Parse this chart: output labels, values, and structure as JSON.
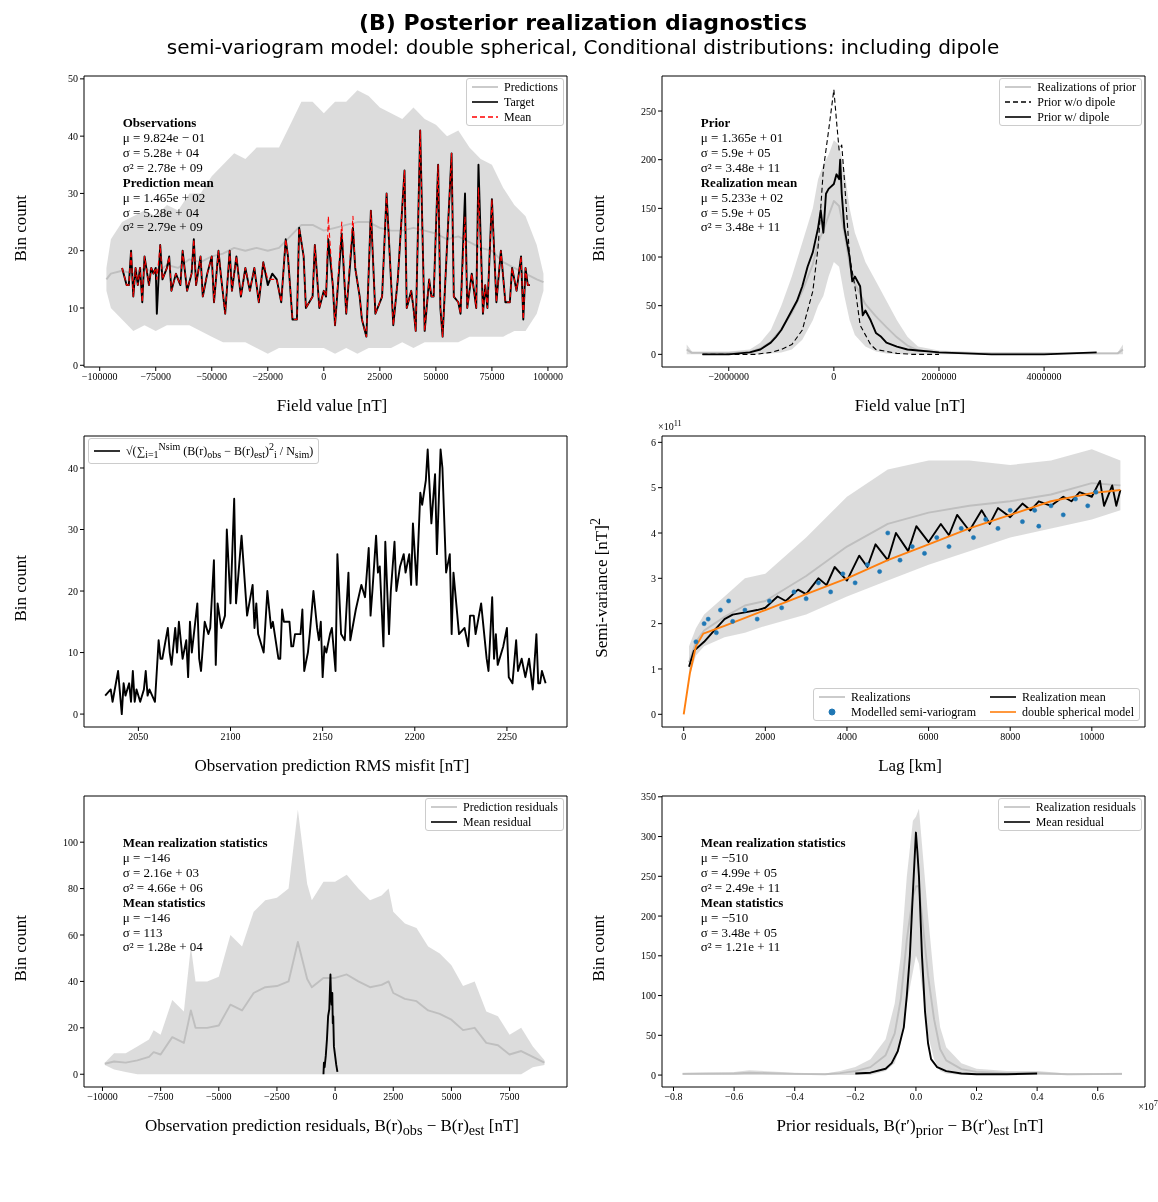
{
  "chart_data": [
    {
      "type": "line",
      "title": "(B) Posterior realization diagnostics",
      "subtitle": "semi-variogram model: double spherical, Conditional distributions: including dipole",
      "xlabel": "Field value [nT]",
      "ylabel": "Bin count",
      "xlim": [
        -107000,
        108500
      ],
      "xticks": [
        -100000,
        -75000,
        -50000,
        -25000,
        0,
        25000,
        50000,
        75000,
        100000
      ],
      "ylim": [
        -0.3,
        50.5
      ],
      "yticks": [
        0,
        10,
        20,
        30,
        40,
        50
      ],
      "legend": "top right",
      "annotations": [
        "Observations\nμ = 9.824e − 01\nσ = 5.28e + 04\nσ² = 2.78e + 09",
        "Prediction mean\nμ = 1.465e + 02\nσ = 5.28e + 04\nσ² = 2.79e + 09"
      ],
      "x": [
        -90000,
        -88000,
        -87000,
        -86000,
        -85000,
        -84000,
        -83000,
        -82000,
        -81000,
        -80000,
        -78000,
        -77000,
        -76000,
        -75000,
        -74500,
        -73000,
        -72000,
        -70000,
        -69000,
        -68000,
        -66000,
        -64000,
        -63000,
        -61000,
        -59000,
        -58000,
        -57000,
        -55000,
        -54000,
        -52000,
        -50000,
        -49000,
        -47000,
        -46000,
        -44000,
        -42000,
        -41000,
        -39000,
        -37000,
        -35000,
        -33000,
        -31000,
        -29000,
        -27000,
        -25000,
        -23000,
        -21000,
        -19000,
        -17000,
        -16000,
        -14000,
        -12000,
        -11000,
        -9000,
        -8000,
        -5000,
        -4000,
        -2000,
        0,
        1000,
        2000,
        4000,
        5000,
        8000,
        10000,
        13000,
        14000,
        16000,
        17000,
        19000,
        21000,
        23000,
        26000,
        28000,
        31000,
        33000,
        36000,
        37000,
        39000,
        40000,
        41000,
        43000,
        45000,
        47000,
        48000,
        49000,
        51000,
        52000,
        53000,
        54000,
        57000,
        58000,
        60000,
        61000,
        63000,
        64000,
        66000,
        68000,
        69000,
        71000,
        72000,
        73000,
        75000,
        77000,
        79000,
        81000,
        83000,
        84000,
        86000,
        88000,
        89000,
        90000,
        91000,
        92000
      ],
      "series": [
        {
          "name": "Predictions",
          "color": "#bfbfbf",
          "x": [
            -97000,
            -95000,
            -90000,
            -85000,
            -80000,
            -75000,
            -70000,
            -65000,
            -60000,
            -55000,
            -50000,
            -45000,
            -40000,
            -35000,
            -30000,
            -25000,
            -20000,
            -15000,
            -10000,
            -5000,
            0,
            5000,
            10000,
            15000,
            20000,
            25000,
            30000,
            35000,
            40000,
            45000,
            50000,
            55000,
            60000,
            65000,
            70000,
            75000,
            80000,
            85000,
            90000,
            95000,
            98000
          ],
          "values": [
            15,
            16,
            16.5,
            16,
            17,
            16,
            17.5,
            17,
            18.5,
            18,
            19,
            19.5,
            20.5,
            20,
            20.5,
            20,
            20.5,
            22.5,
            24.5,
            24.5,
            23.5,
            24,
            24.5,
            25,
            25,
            24,
            23.5,
            23.5,
            24,
            23.5,
            23,
            22,
            22.5,
            21.5,
            20.5,
            20,
            18,
            17,
            16,
            15,
            14.5
          ],
          "upper": [
            17,
            22,
            25,
            26,
            27,
            26,
            28,
            27,
            30,
            30,
            33,
            35,
            37,
            36,
            38,
            38,
            38,
            42,
            46,
            46,
            44,
            46,
            46,
            48,
            47,
            45,
            44,
            43,
            45,
            43,
            42,
            40,
            41,
            38,
            36,
            35,
            31,
            28,
            26,
            21,
            16
          ],
          "lower": [
            13,
            10,
            8,
            6,
            7,
            6,
            7,
            7,
            7,
            6,
            5,
            4,
            4,
            4,
            3,
            2,
            3,
            3,
            3,
            3,
            3,
            2,
            3,
            2,
            3,
            3,
            3,
            4,
            3,
            4,
            4,
            4,
            4,
            5,
            5,
            5,
            5,
            6,
            6,
            9,
            13
          ]
        },
        {
          "name": "Target",
          "color": "#000000",
          "values": [
            17,
            14,
            14,
            20,
            12,
            17,
            14,
            17,
            11,
            19,
            14,
            17,
            16,
            17,
            9,
            21,
            15,
            17,
            19,
            13,
            16,
            14,
            20,
            13,
            16,
            22,
            14,
            19,
            12,
            16,
            19,
            11,
            20,
            16,
            9,
            20,
            13,
            19,
            12,
            17,
            13,
            17,
            11,
            18,
            14,
            16,
            15,
            11,
            22,
            19,
            8,
            8,
            24,
            19,
            10,
            12,
            21,
            10,
            13,
            12,
            22,
            14,
            7,
            23,
            9,
            24,
            17,
            12,
            8,
            5,
            27,
            9,
            12,
            30,
            7,
            15,
            34,
            10,
            13,
            10,
            6,
            41,
            6,
            15,
            12,
            12,
            35,
            10,
            5,
            13,
            37,
            12,
            11,
            9,
            30,
            10,
            16,
            10,
            35,
            9,
            14,
            10,
            29,
            11,
            20,
            11,
            11,
            17,
            13,
            19,
            8,
            17,
            14,
            14
          ]
        },
        {
          "name": "Mean",
          "color": "#ff0000",
          "line_style": "dashed",
          "values": [
            17,
            14,
            14,
            20,
            12,
            17,
            14,
            17,
            11,
            19,
            14,
            17,
            16,
            17,
            15,
            21,
            15,
            17,
            19,
            13,
            16,
            14,
            20,
            13,
            16,
            22,
            14,
            19,
            12,
            16,
            19,
            11,
            20,
            16,
            9,
            20,
            13,
            19,
            12,
            17,
            13,
            17,
            11,
            18,
            15,
            15,
            15,
            11,
            22,
            19,
            8,
            8,
            24,
            19,
            10,
            12,
            21,
            10,
            13,
            12,
            26,
            14,
            7,
            25,
            9,
            26,
            17,
            12,
            8,
            5,
            27,
            9,
            12,
            30,
            7,
            15,
            34,
            10,
            13,
            10,
            6,
            41,
            6,
            15,
            12,
            12,
            35,
            10,
            5,
            13,
            37,
            12,
            11,
            9,
            26,
            10,
            16,
            10,
            31,
            9,
            14,
            10,
            29,
            11,
            20,
            11,
            11,
            17,
            13,
            19,
            8,
            17,
            14,
            14
          ]
        }
      ]
    },
    {
      "type": "line",
      "xlabel": "Field value [nT]",
      "ylabel": "Bin count",
      "xlim": [
        -3270000,
        5920000
      ],
      "xticks": [
        -2000000,
        0,
        2000000,
        4000000
      ],
      "ylim": [
        -13,
        286
      ],
      "yticks": [
        0,
        50,
        100,
        150,
        200,
        250
      ],
      "legend": "top right",
      "annotations": [
        "Prior\nμ = 1.365e + 01\nσ = 5.9e + 05\nσ² = 3.48e + 11",
        "Realization mean\nμ = 5.233e + 02\nσ = 5.9e + 05\nσ² = 3.48e + 11"
      ],
      "series": [
        {
          "name": "Realizations of prior",
          "color": "#bfbfbf",
          "x": [
            -2800000,
            -2700000,
            -2000000,
            -1600000,
            -1400000,
            -1200000,
            -1000000,
            -800000,
            -600000,
            -400000,
            -300000,
            -200000,
            -100000,
            0,
            100000,
            200000,
            300000,
            400000,
            600000,
            800000,
            1000000,
            1200000,
            1400000,
            1600000,
            2000000,
            3000000,
            4000000,
            5400000,
            5500000
          ],
          "values": [
            5,
            1.5,
            1.5,
            2.5,
            6,
            13,
            26,
            42.5,
            65,
            92.5,
            115,
            127.5,
            142.5,
            157.5,
            152.5,
            125,
            92.5,
            72.5,
            51.5,
            39,
            28,
            17.5,
            9,
            4,
            2,
            1,
            1,
            1,
            5
          ],
          "upper": [
            10,
            3,
            3,
            5,
            12,
            25,
            50,
            80,
            115,
            150,
            180,
            195,
            205,
            220,
            215,
            190,
            150,
            125,
            95,
            75,
            55,
            35,
            18,
            8,
            4,
            2,
            2,
            2,
            10
          ],
          "lower": [
            0,
            0,
            0,
            0,
            0,
            1,
            2,
            5,
            15,
            35,
            50,
            60,
            80,
            95,
            90,
            60,
            35,
            20,
            8,
            3,
            1,
            0,
            0,
            0,
            0,
            0,
            0,
            0,
            0
          ]
        },
        {
          "name": "Prior w/o dipole",
          "color": "#000000",
          "line_style": "dashed",
          "x": [
            -2500000,
            -1500000,
            -1200000,
            -1000000,
            -800000,
            -600000,
            -500000,
            -400000,
            -300000,
            -200000,
            -100000,
            0,
            50000,
            100000,
            150000,
            200000,
            300000,
            400000,
            500000,
            600000,
            700000,
            800000,
            1000000,
            1200000,
            1500000,
            2000000
          ],
          "values": [
            0,
            0,
            2,
            5,
            10,
            25,
            45,
            65,
            110,
            190,
            230,
            272,
            240,
            210,
            215,
            180,
            100,
            70,
            30,
            20,
            10,
            5,
            3,
            1,
            0,
            0
          ]
        },
        {
          "name": "Prior w/ dipole",
          "color": "#000000",
          "x": [
            -2500000,
            -2000000,
            -1600000,
            -1400000,
            -1200000,
            -1100000,
            -1000000,
            -900000,
            -800000,
            -700000,
            -600000,
            -500000,
            -400000,
            -300000,
            -250000,
            -200000,
            -150000,
            -100000,
            0,
            50000,
            100000,
            120000,
            150000,
            200000,
            300000,
            350000,
            400000,
            500000,
            550000,
            600000,
            700000,
            800000,
            900000,
            1000000,
            1200000,
            1400000,
            1600000,
            1800000,
            2000000,
            2500000,
            3000000,
            4000000,
            5000000
          ],
          "values": [
            0,
            0,
            2,
            5,
            12,
            18,
            25,
            35,
            45,
            55,
            70,
            90,
            105,
            130,
            148,
            125,
            165,
            170,
            175,
            185,
            180,
            200,
            165,
            130,
            100,
            75,
            80,
            70,
            40,
            45,
            35,
            22,
            18,
            12,
            8,
            5,
            4,
            3,
            2,
            1,
            0,
            0,
            2
          ]
        }
      ]
    },
    {
      "type": "line",
      "xlabel": "Observation prediction RMS misfit [nT]",
      "ylabel": "Bin count",
      "xlim": [
        2020.5,
        2282.6
      ],
      "xticks": [
        2050,
        2100,
        2150,
        2200,
        2250
      ],
      "ylim": [
        -2.1,
        45.2
      ],
      "yticks": [
        0,
        10,
        20,
        30,
        40
      ],
      "legend": "top left",
      "series": [
        {
          "name": "√(∑$_{i=1}$$^{Nsim}$ (B(r)$_{obs}$ − B(r)$_{est}$)$^{2}$$_{i}$ / N$_{sim}$)",
          "color": "#000000",
          "x": [
            2032,
            2035,
            2036,
            2039,
            2041,
            2042,
            2043,
            2045,
            2046,
            2047,
            2048,
            2049,
            2051,
            2053,
            2054,
            2055,
            2056,
            2059,
            2061,
            2062,
            2063,
            2066,
            2067,
            2068,
            2070,
            2071,
            2072,
            2074,
            2076,
            2077,
            2078,
            2079,
            2082,
            2083,
            2084,
            2086,
            2088,
            2089,
            2091,
            2092,
            2093,
            2095,
            2097,
            2098,
            2100,
            2102,
            2103,
            2106,
            2109,
            2112,
            2113,
            2114,
            2115,
            2118,
            2120,
            2122,
            2123,
            2126,
            2127,
            2128,
            2129,
            2132,
            2133,
            2134,
            2135,
            2138,
            2139,
            2140,
            2142,
            2143,
            2145,
            2147,
            2148,
            2149,
            2150,
            2151,
            2152,
            2154,
            2155,
            2157,
            2158,
            2160,
            2162,
            2164,
            2165,
            2168,
            2171,
            2173,
            2175,
            2176,
            2177,
            2179,
            2180,
            2181,
            2183,
            2184,
            2186,
            2187,
            2189,
            2190,
            2192,
            2194,
            2195,
            2197,
            2198,
            2199,
            2201,
            2203,
            2204,
            2206,
            2207,
            2209,
            2211,
            2212,
            2214,
            2215,
            2217,
            2219,
            2220,
            2221,
            2224,
            2227,
            2229,
            2230,
            2232,
            2233,
            2236,
            2239,
            2240,
            2242,
            2243,
            2244,
            2245,
            2248,
            2250,
            2251,
            2253,
            2255,
            2256,
            2258,
            2260,
            2262,
            2264,
            2266,
            2267,
            2268,
            2269,
            2271
          ],
          "values": [
            3,
            4,
            2,
            7,
            0,
            5,
            3,
            5,
            2,
            7,
            2,
            4,
            2,
            4,
            7,
            3,
            4,
            2,
            12,
            9,
            9,
            14,
            10,
            8,
            14,
            10,
            15,
            9,
            12,
            6,
            15,
            10,
            18,
            9,
            7,
            15,
            13,
            14,
            25,
            8,
            18,
            14,
            16,
            30,
            18,
            35,
            18,
            29,
            16,
            21,
            14,
            18,
            13,
            10,
            20,
            14,
            15,
            9,
            9,
            17,
            15,
            15,
            11,
            11,
            13,
            13,
            17,
            7,
            10,
            13,
            20,
            14,
            12,
            15,
            6,
            11,
            10,
            13,
            14,
            7,
            26,
            13,
            12,
            23,
            12,
            17,
            21,
            19,
            27,
            16,
            20,
            29,
            23,
            24,
            11,
            28,
            13,
            20,
            28,
            20,
            24,
            26,
            23,
            26,
            21,
            31,
            21,
            36,
            34,
            38,
            43,
            31,
            39,
            26,
            43,
            40,
            23,
            26,
            13,
            23,
            13,
            14,
            11,
            16,
            16,
            13,
            18,
            9,
            7,
            19,
            9,
            13,
            8,
            11,
            14,
            6,
            5,
            12,
            7,
            9,
            6,
            9,
            4,
            13,
            5,
            5,
            7,
            5
          ]
        }
      ]
    },
    {
      "type": "line",
      "xlabel": "Lag [km]",
      "ylabel": "Semi-variance [nT]$^{2}$",
      "xlim": [
        -532,
        11303
      ],
      "xticks": [
        0,
        2000,
        4000,
        6000,
        8000,
        10000
      ],
      "ylim": [
        -0.28,
        6.14
      ],
      "yticks": [
        0,
        1,
        2,
        3,
        4,
        5,
        6
      ],
      "legend": "bottom right",
      "annotations": [
        "×10$^{11}$"
      ],
      "series": [
        {
          "name": "Realizations",
          "color": "#bfbfbf",
          "x": [
            130,
            300,
            500,
            1000,
            1500,
            2000,
            3000,
            4000,
            5000,
            6000,
            7000,
            8000,
            9000,
            10000,
            10700
          ],
          "values": [
            1.15,
            1.6,
            1.85,
            2.15,
            2.4,
            2.5,
            3.05,
            3.7,
            4.2,
            4.45,
            4.6,
            4.7,
            4.85,
            5.1,
            5.05
          ],
          "upper": [
            1.5,
            1.9,
            2.2,
            2.6,
            3.0,
            3.1,
            3.9,
            4.8,
            5.4,
            5.6,
            5.6,
            5.5,
            5.6,
            5.85,
            5.6
          ],
          "lower": [
            0.8,
            1.3,
            1.5,
            1.7,
            1.8,
            1.95,
            2.2,
            2.6,
            2.95,
            3.3,
            3.6,
            3.9,
            4.1,
            4.3,
            4.5
          ]
        },
        {
          "name": "Modelled semi-variogram",
          "type": "scatter",
          "marker": "circle",
          "color": "#1f77b4",
          "x": [
            300,
            500,
            600,
            800,
            900,
            1100,
            1200,
            1500,
            1800,
            2100,
            2400,
            2700,
            3000,
            3300,
            3600,
            3900,
            4200,
            4500,
            4800,
            5000,
            5300,
            5600,
            5900,
            6200,
            6500,
            6800,
            7100,
            7400,
            7700,
            8000,
            8300,
            8600,
            8700,
            9000,
            9300,
            9600,
            9900,
            10100
          ],
          "values": [
            1.6,
            2.0,
            2.1,
            1.8,
            2.3,
            2.5,
            2.05,
            2.3,
            2.1,
            2.5,
            2.35,
            2.7,
            2.55,
            2.9,
            2.7,
            3.1,
            2.9,
            3.3,
            3.15,
            4.0,
            3.4,
            3.7,
            3.55,
            3.9,
            3.7,
            4.1,
            3.9,
            4.3,
            4.1,
            4.5,
            4.25,
            4.5,
            4.15,
            4.6,
            4.4,
            4.75,
            4.6,
            4.9
          ]
        },
        {
          "name": "Realization mean",
          "color": "#000000",
          "x": [
            130,
            250,
            500,
            750,
            1000,
            1200,
            1500,
            1800,
            2000,
            2300,
            2500,
            2800,
            3000,
            3300,
            3500,
            3700,
            4000,
            4300,
            4500,
            4700,
            5000,
            5200,
            5500,
            5700,
            6000,
            6300,
            6500,
            6700,
            7000,
            7300,
            7500,
            7700,
            8000,
            8300,
            8500,
            8700,
            9000,
            9300,
            9500,
            9700,
            10000,
            10200,
            10300,
            10500,
            10600,
            10700
          ],
          "values": [
            1.05,
            1.4,
            1.6,
            1.85,
            2.1,
            2.2,
            2.25,
            2.3,
            2.35,
            2.6,
            2.5,
            2.75,
            2.65,
            3.0,
            2.85,
            3.25,
            2.95,
            3.5,
            3.25,
            3.75,
            3.4,
            4.0,
            3.6,
            4.15,
            3.8,
            4.2,
            3.95,
            4.4,
            4.05,
            4.5,
            4.2,
            4.55,
            4.35,
            4.65,
            4.5,
            4.7,
            4.6,
            4.8,
            4.7,
            4.9,
            4.8,
            5.15,
            4.6,
            5.05,
            4.6,
            4.95
          ]
        },
        {
          "name": "double spherical model",
          "color": "#ff7f0e",
          "x": [
            0,
            150,
            300,
            480,
            1000,
            2000,
            3000,
            4000,
            5000,
            6000,
            7000,
            8000,
            9000,
            10000,
            10700
          ],
          "values": [
            0,
            0.9,
            1.5,
            1.78,
            1.95,
            2.3,
            2.65,
            3.0,
            3.4,
            3.75,
            4.1,
            4.4,
            4.7,
            4.88,
            4.95
          ]
        }
      ]
    },
    {
      "type": "line",
      "xlabel": "Observation prediction residuals, B(r)$_{obs}$ − B(r)$_{est}$ [nT]",
      "ylabel": "Bin count",
      "xlim": [
        -10794,
        9969
      ],
      "xticks": [
        -10000,
        -7500,
        -5000,
        -2500,
        0,
        2500,
        5000,
        7500
      ],
      "ylim": [
        -5.5,
        119.9
      ],
      "yticks": [
        0,
        20,
        40,
        60,
        80,
        100
      ],
      "legend": "top right",
      "annotations": [
        "Mean realization statistics\nμ = −146\nσ = 2.16e + 03\nσ² = 4.66e + 06",
        "Mean statistics\nμ = −146\nσ = 113\nσ² = 1.28e + 04"
      ],
      "series": [
        {
          "name": "Prediction residuals",
          "color": "#bfbfbf",
          "x": [
            -9900,
            -9500,
            -9000,
            -8500,
            -8000,
            -7800,
            -7500,
            -7000,
            -6500,
            -6200,
            -6000,
            -5500,
            -5000,
            -4500,
            -4000,
            -3500,
            -3000,
            -2500,
            -2000,
            -1600,
            -1200,
            -1000,
            -500,
            0,
            500,
            1000,
            1500,
            2000,
            2300,
            2500,
            3000,
            3500,
            4000,
            4500,
            5000,
            5500,
            6000,
            6500,
            7000,
            7500,
            8000,
            8500,
            9000
          ],
          "values": [
            4.5,
            5.5,
            5,
            6,
            7.5,
            9.5,
            8.5,
            16,
            13.5,
            27.5,
            20,
            20,
            21,
            30,
            27.5,
            35,
            37.5,
            38,
            40,
            57,
            41,
            37.5,
            41.5,
            41.5,
            43,
            40,
            37.5,
            38.5,
            40,
            35,
            32.5,
            31.5,
            27.5,
            26,
            23.5,
            19,
            20,
            13.5,
            12.5,
            8.5,
            10,
            7.5,
            5
          ],
          "upper": [
            5,
            9,
            9,
            12,
            15,
            19,
            17,
            32,
            27,
            55,
            40,
            40,
            42,
            60,
            55,
            70,
            75,
            76,
            80,
            114,
            82,
            75,
            83,
            83,
            86,
            80,
            75,
            77,
            80,
            70,
            65,
            63,
            55,
            52,
            47,
            38,
            40,
            27,
            25,
            17,
            20,
            12,
            6
          ],
          "lower": [
            4,
            2,
            1,
            0,
            0,
            0,
            0,
            0,
            0,
            0,
            0,
            0,
            0,
            0,
            0,
            0,
            0,
            0,
            0,
            0,
            0,
            0,
            0,
            0,
            0,
            0,
            0,
            0,
            0,
            0,
            0,
            0,
            0,
            0,
            0,
            0,
            0,
            0,
            0,
            0,
            0,
            3,
            4
          ]
        },
        {
          "name": "Mean residual",
          "color": "#000000",
          "x": [
            -500,
            -480,
            -450,
            -400,
            -350,
            -300,
            -250,
            -200,
            -180,
            -150,
            -120,
            -100,
            -80,
            -50,
            0,
            50,
            100
          ],
          "values": [
            0,
            5,
            3,
            8,
            15,
            25,
            28,
            43,
            35,
            30,
            35,
            22,
            25,
            12,
            8,
            4,
            1
          ]
        }
      ]
    },
    {
      "type": "line",
      "xlabel": "Prior residuals, B(r′)$_{prior}$ − B(r′)$_{est}$ [nT]",
      "ylabel": "Bin count",
      "xlim": [
        -0.838,
        0.756
      ],
      "xticks": [
        {
          "value": -0.8,
          "label": "−0.8"
        },
        {
          "value": -0.6,
          "label": "−0.6"
        },
        {
          "value": -0.4,
          "label": "−0.4"
        },
        {
          "value": -0.2,
          "label": "−0.2"
        },
        {
          "value": 0,
          "label": "0.0"
        },
        {
          "value": 0.2,
          "label": "0.2"
        },
        {
          "value": 0.4,
          "label": "0.4"
        },
        {
          "value": 0.6,
          "label": "0.6"
        }
      ],
      "ylim": [
        -15,
        351
      ],
      "yticks": [
        0,
        50,
        100,
        150,
        200,
        250,
        300,
        350
      ],
      "legend": "top right",
      "annotations": [
        "Mean realization statistics\nμ = −510\nσ = 4.99e + 05\nσ² = 2.49e + 11",
        "Mean statistics\nμ = −510\nσ = 3.48e + 05\nσ² = 1.21e + 11",
        "×10$^{7}$"
      ],
      "series": [
        {
          "name": "Realization residuals",
          "color": "#bfbfbf",
          "x": [
            -0.77,
            -0.6,
            -0.55,
            -0.4,
            -0.3,
            -0.25,
            -0.2,
            -0.15,
            -0.1,
            -0.07,
            -0.05,
            -0.03,
            -0.01,
            0,
            0.01,
            0.02,
            0.04,
            0.06,
            0.08,
            0.1,
            0.15,
            0.2,
            0.3,
            0.4,
            0.5,
            0.68
          ],
          "values": [
            1.5,
            2,
            3,
            1.5,
            1,
            2.5,
            5,
            10,
            25,
            52.5,
            95,
            170,
            225,
            237.5,
            237.5,
            200,
            125,
            70,
            32.5,
            18.5,
            7.5,
            4,
            2.5,
            2.5,
            1,
            1.5
          ],
          "upper": [
            3,
            4,
            6,
            3,
            2,
            5,
            10,
            20,
            45,
            90,
            150,
            250,
            320,
            325,
            335,
            290,
            200,
            120,
            60,
            35,
            15,
            8,
            5,
            5,
            2,
            3
          ],
          "lower": [
            0,
            0,
            0,
            0,
            0,
            0,
            0,
            0,
            5,
            15,
            40,
            90,
            130,
            150,
            140,
            110,
            50,
            20,
            5,
            2,
            0,
            0,
            0,
            0,
            0,
            0
          ]
        },
        {
          "name": "Mean residual",
          "color": "#000000",
          "x": [
            -0.2,
            -0.15,
            -0.1,
            -0.08,
            -0.06,
            -0.04,
            -0.03,
            -0.02,
            -0.01,
            0,
            0.005,
            0.01,
            0.015,
            0.02,
            0.03,
            0.04,
            0.05,
            0.07,
            0.1,
            0.15,
            0.2,
            0.3,
            0.4
          ],
          "values": [
            2,
            3,
            8,
            15,
            30,
            60,
            100,
            150,
            230,
            305,
            280,
            250,
            200,
            150,
            80,
            40,
            20,
            10,
            5,
            2,
            1,
            1,
            2
          ]
        }
      ]
    }
  ]
}
